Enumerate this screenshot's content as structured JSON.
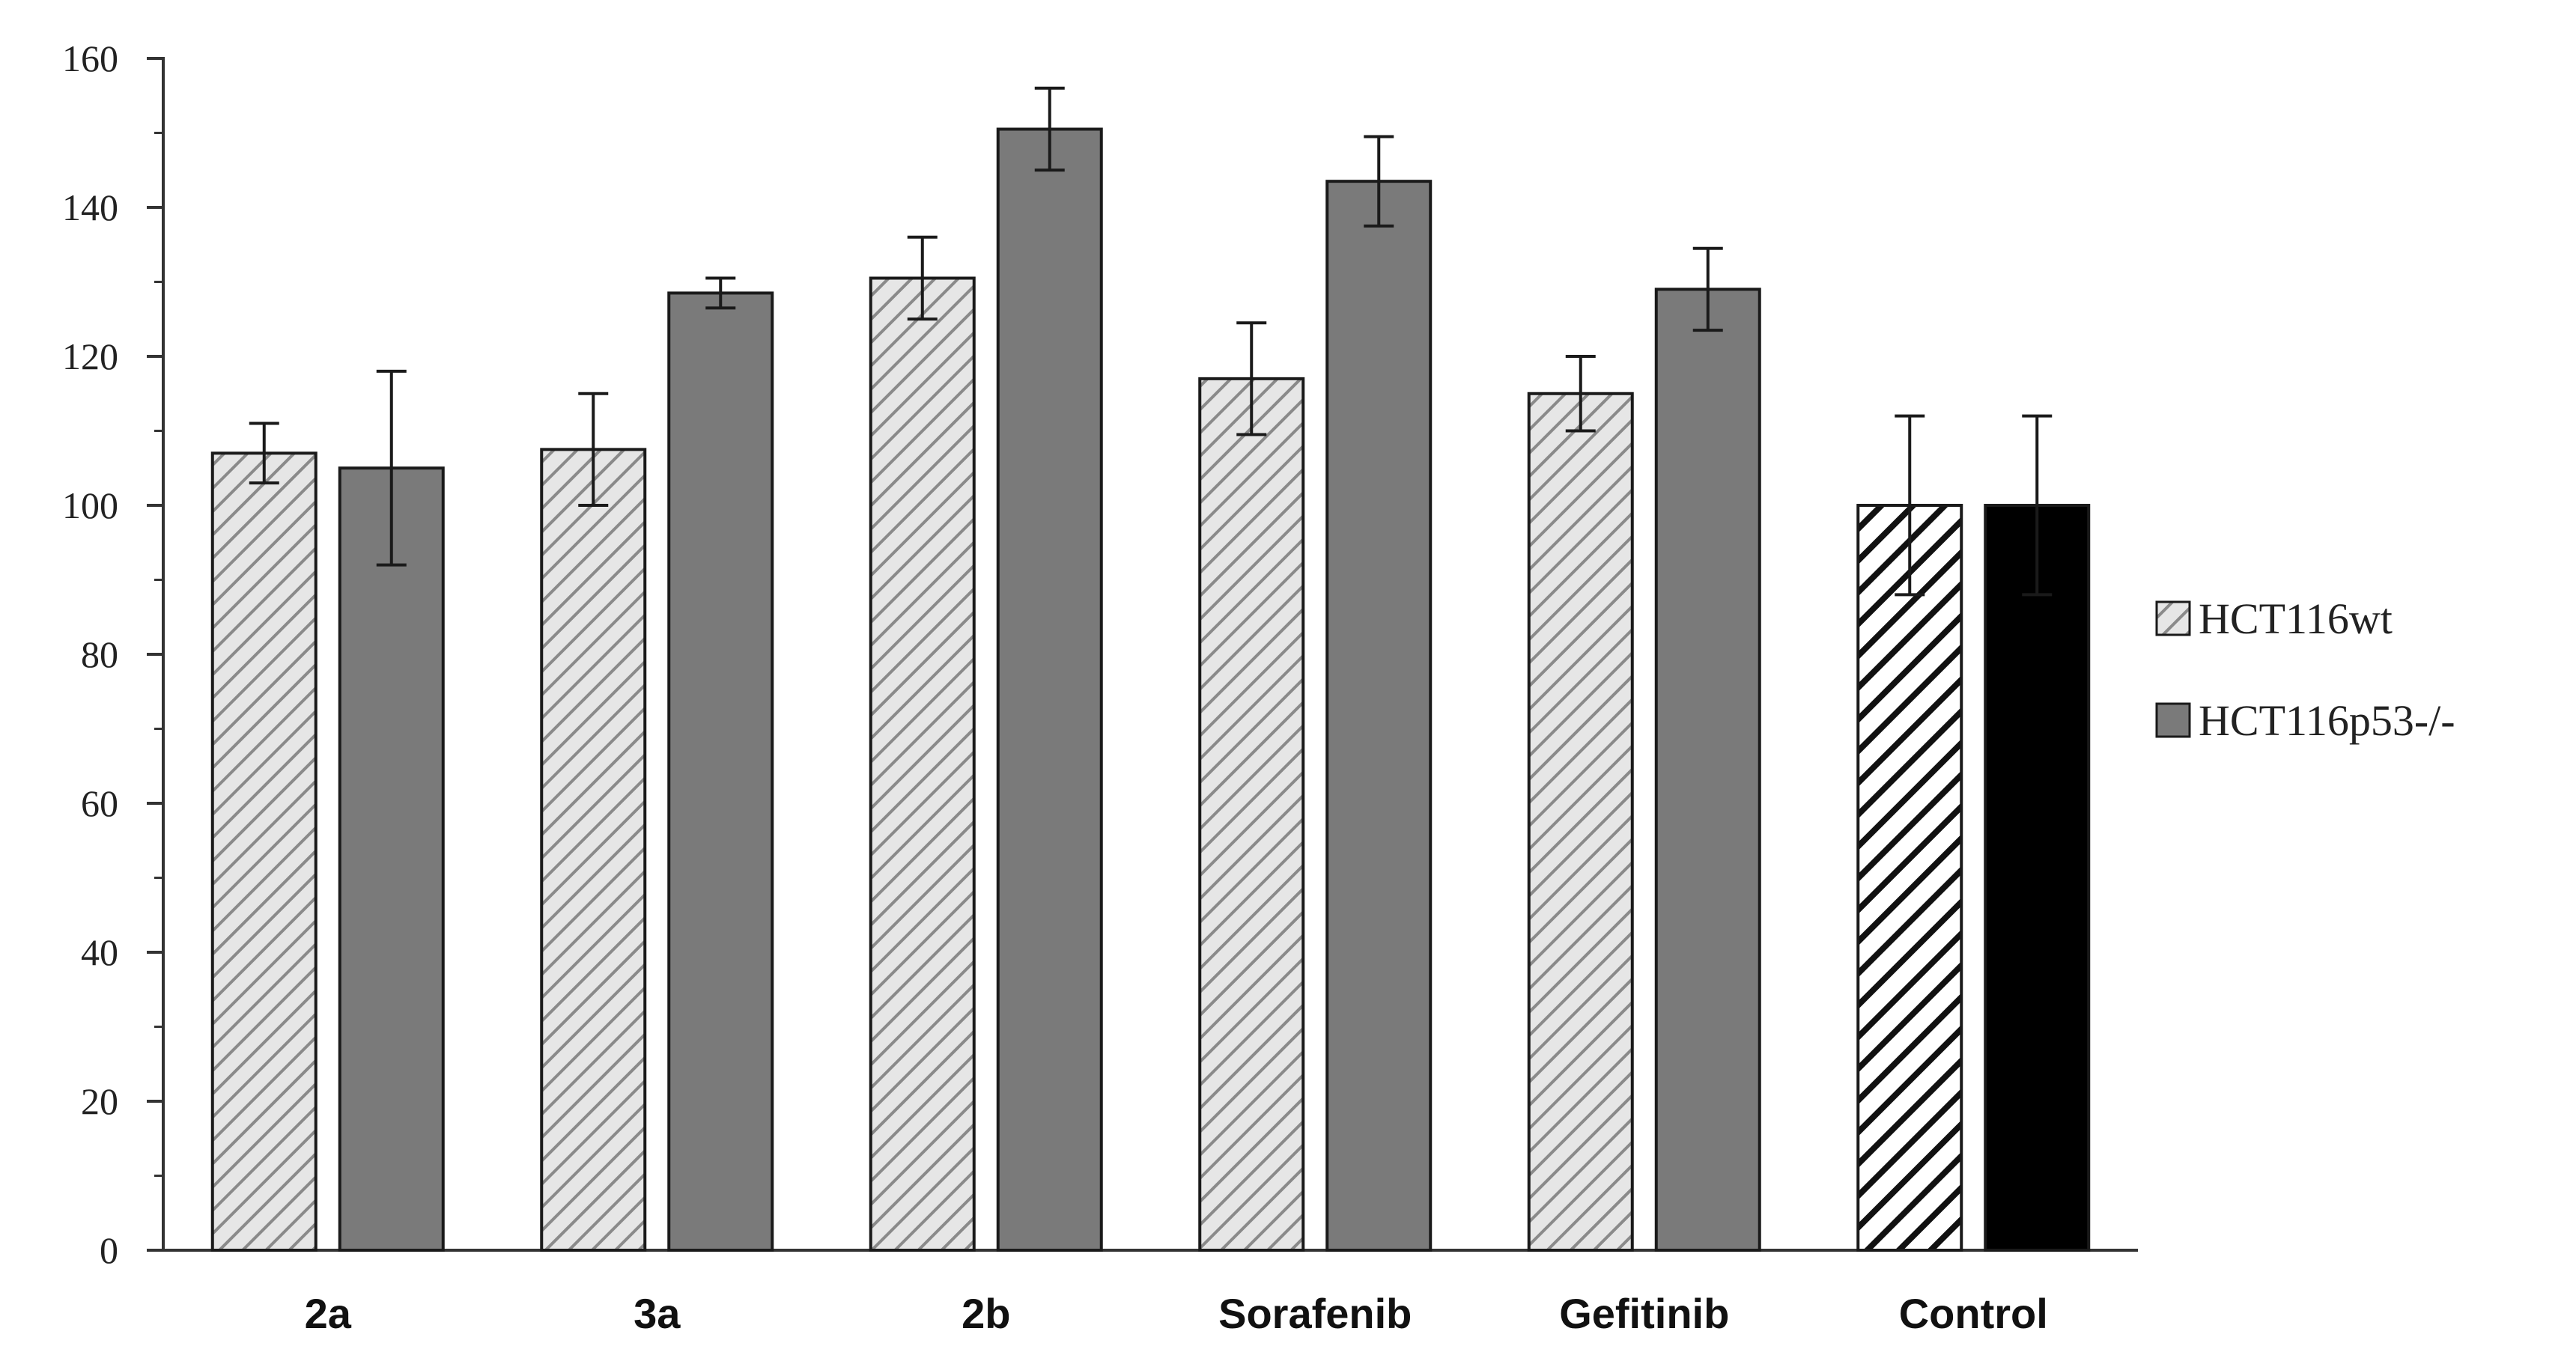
{
  "chart_data": {
    "type": "bar",
    "title": "",
    "xlabel": "",
    "ylabel": "",
    "ylim": [
      0,
      160
    ],
    "yticks": [
      0,
      20,
      40,
      60,
      80,
      100,
      120,
      140,
      160
    ],
    "grid": false,
    "legend_position": "right",
    "categories": [
      "2a",
      "3a",
      "2b",
      "Sorafenib",
      "Gefitinib",
      "Control"
    ],
    "series": [
      {
        "name": "HCT116wt",
        "values": [
          107,
          107.5,
          130.5,
          117,
          115,
          100
        ],
        "errors": [
          4,
          7.5,
          5.5,
          7.5,
          5,
          12
        ]
      },
      {
        "name": "HCT116p53-/-",
        "values": [
          105,
          128.5,
          150.5,
          143.5,
          129,
          100
        ],
        "errors": [
          13,
          2,
          5.5,
          6,
          5.5,
          12
        ]
      }
    ],
    "colors": {
      "wt_fill": "#e6e6e6",
      "wt_hatch": "#8a8a8a",
      "p53_fill": "#7a7a7a",
      "control_wt_fill": "#ffffff",
      "control_wt_hatch": "#111111",
      "control_p53_fill": "#000000",
      "axis": "#333333"
    }
  }
}
